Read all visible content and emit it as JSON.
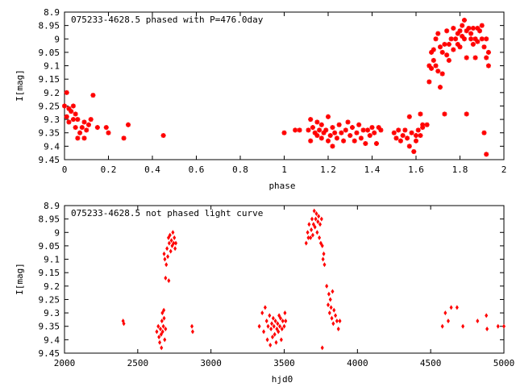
{
  "chart_data": [
    {
      "type": "scatter",
      "title": "075233-4628.5 phased with P=476.0day",
      "xlabel": "phase",
      "ylabel": "I[mag]",
      "xlim": [
        0,
        2
      ],
      "ylim": [
        9.45,
        8.9
      ],
      "y_inverted": true,
      "grid": false,
      "marker_color": "#ff0000",
      "marker": "star",
      "xticks": [
        "0",
        "0.2",
        "0.4",
        "0.6",
        "0.8",
        "1",
        "1.2",
        "1.4",
        "1.6",
        "1.8",
        "2"
      ],
      "yticks": [
        "8.9",
        "8.95",
        "9",
        "9.05",
        "9.1",
        "9.15",
        "9.2",
        "9.25",
        "9.3",
        "9.35",
        "9.4",
        "9.45"
      ],
      "points": [
        [
          0.0,
          9.25
        ],
        [
          0.01,
          9.29
        ],
        [
          0.01,
          9.2
        ],
        [
          0.02,
          9.26
        ],
        [
          0.02,
          9.31
        ],
        [
          0.03,
          9.27
        ],
        [
          0.04,
          9.25
        ],
        [
          0.04,
          9.3
        ],
        [
          0.05,
          9.33
        ],
        [
          0.05,
          9.28
        ],
        [
          0.06,
          9.37
        ],
        [
          0.06,
          9.3
        ],
        [
          0.07,
          9.35
        ],
        [
          0.08,
          9.33
        ],
        [
          0.09,
          9.37
        ],
        [
          0.09,
          9.31
        ],
        [
          0.1,
          9.34
        ],
        [
          0.11,
          9.32
        ],
        [
          0.12,
          9.3
        ],
        [
          0.13,
          9.21
        ],
        [
          0.15,
          9.33
        ],
        [
          0.19,
          9.33
        ],
        [
          0.2,
          9.35
        ],
        [
          0.27,
          9.37
        ],
        [
          0.29,
          9.32
        ],
        [
          0.45,
          9.36
        ],
        [
          1.0,
          9.35
        ],
        [
          1.05,
          9.34
        ],
        [
          1.07,
          9.34
        ],
        [
          1.11,
          9.34
        ],
        [
          1.12,
          9.3
        ],
        [
          1.12,
          9.38
        ],
        [
          1.13,
          9.33
        ],
        [
          1.14,
          9.35
        ],
        [
          1.15,
          9.36
        ],
        [
          1.15,
          9.31
        ],
        [
          1.16,
          9.34
        ],
        [
          1.17,
          9.37
        ],
        [
          1.17,
          9.32
        ],
        [
          1.18,
          9.35
        ],
        [
          1.19,
          9.34
        ],
        [
          1.2,
          9.38
        ],
        [
          1.2,
          9.29
        ],
        [
          1.21,
          9.36
        ],
        [
          1.22,
          9.33
        ],
        [
          1.22,
          9.4
        ],
        [
          1.23,
          9.35
        ],
        [
          1.24,
          9.37
        ],
        [
          1.25,
          9.32
        ],
        [
          1.26,
          9.35
        ],
        [
          1.27,
          9.38
        ],
        [
          1.28,
          9.34
        ],
        [
          1.29,
          9.31
        ],
        [
          1.3,
          9.36
        ],
        [
          1.31,
          9.33
        ],
        [
          1.32,
          9.38
        ],
        [
          1.33,
          9.35
        ],
        [
          1.34,
          9.32
        ],
        [
          1.35,
          9.37
        ],
        [
          1.36,
          9.34
        ],
        [
          1.37,
          9.39
        ],
        [
          1.38,
          9.34
        ],
        [
          1.39,
          9.36
        ],
        [
          1.4,
          9.33
        ],
        [
          1.41,
          9.35
        ],
        [
          1.42,
          9.39
        ],
        [
          1.43,
          9.33
        ],
        [
          1.44,
          9.34
        ],
        [
          1.5,
          9.35
        ],
        [
          1.51,
          9.37
        ],
        [
          1.52,
          9.34
        ],
        [
          1.53,
          9.38
        ],
        [
          1.54,
          9.36
        ],
        [
          1.55,
          9.34
        ],
        [
          1.56,
          9.37
        ],
        [
          1.57,
          9.4
        ],
        [
          1.57,
          9.29
        ],
        [
          1.58,
          9.35
        ],
        [
          1.59,
          9.42
        ],
        [
          1.6,
          9.36
        ],
        [
          1.6,
          9.38
        ],
        [
          1.61,
          9.34
        ],
        [
          1.62,
          9.36
        ],
        [
          1.62,
          9.28
        ],
        [
          1.63,
          9.32
        ],
        [
          1.63,
          9.33
        ],
        [
          1.65,
          9.32
        ],
        [
          1.66,
          9.16
        ],
        [
          1.66,
          9.1
        ],
        [
          1.67,
          9.05
        ],
        [
          1.67,
          9.11
        ],
        [
          1.68,
          9.04
        ],
        [
          1.68,
          9.08
        ],
        [
          1.69,
          9.1
        ],
        [
          1.69,
          9.0
        ],
        [
          1.7,
          9.12
        ],
        [
          1.7,
          8.98
        ],
        [
          1.71,
          9.03
        ],
        [
          1.71,
          9.18
        ],
        [
          1.72,
          9.05
        ],
        [
          1.72,
          9.13
        ],
        [
          1.73,
          9.02
        ],
        [
          1.73,
          9.28
        ],
        [
          1.74,
          9.06
        ],
        [
          1.74,
          8.97
        ],
        [
          1.75,
          9.02
        ],
        [
          1.75,
          9.08
        ],
        [
          1.76,
          9.0
        ],
        [
          1.77,
          9.04
        ],
        [
          1.77,
          8.96
        ],
        [
          1.78,
          9.0
        ],
        [
          1.79,
          9.02
        ],
        [
          1.79,
          8.98
        ],
        [
          1.8,
          8.97
        ],
        [
          1.8,
          9.03
        ],
        [
          1.81,
          8.95
        ],
        [
          1.81,
          8.99
        ],
        [
          1.82,
          9.0
        ],
        [
          1.82,
          8.93
        ],
        [
          1.83,
          8.97
        ],
        [
          1.83,
          9.07
        ],
        [
          1.83,
          9.28
        ],
        [
          1.84,
          8.96
        ],
        [
          1.85,
          9.0
        ],
        [
          1.85,
          8.98
        ],
        [
          1.86,
          8.96
        ],
        [
          1.86,
          9.02
        ],
        [
          1.87,
          9.0
        ],
        [
          1.87,
          9.07
        ],
        [
          1.88,
          8.96
        ],
        [
          1.88,
          9.01
        ],
        [
          1.89,
          8.97
        ],
        [
          1.9,
          9.0
        ],
        [
          1.9,
          8.95
        ],
        [
          1.91,
          9.03
        ],
        [
          1.91,
          9.35
        ],
        [
          1.92,
          9.0
        ],
        [
          1.92,
          9.07
        ],
        [
          1.92,
          9.43
        ],
        [
          1.93,
          9.1
        ],
        [
          1.93,
          9.05
        ]
      ]
    },
    {
      "type": "scatter",
      "title": "075233-4628.5 not phased light curve",
      "xlabel": "hjd0",
      "ylabel": "I[mag]",
      "xlim": [
        2000,
        5000
      ],
      "ylim": [
        9.45,
        8.9
      ],
      "y_inverted": true,
      "grid": false,
      "marker_color": "#ff0000",
      "marker": "dot",
      "xticks": [
        "2000",
        "2500",
        "3000",
        "3500",
        "4000",
        "4500",
        "5000"
      ],
      "yticks": [
        "8.9",
        "8.95",
        "9",
        "9.05",
        "9.1",
        "9.15",
        "9.2",
        "9.25",
        "9.3",
        "9.35",
        "9.4",
        "9.45"
      ],
      "points": [
        [
          2400,
          9.33
        ],
        [
          2405,
          9.34
        ],
        [
          2630,
          9.37
        ],
        [
          2640,
          9.35
        ],
        [
          2645,
          9.39
        ],
        [
          2650,
          9.41
        ],
        [
          2655,
          9.36
        ],
        [
          2660,
          9.38
        ],
        [
          2662,
          9.43
        ],
        [
          2665,
          9.33
        ],
        [
          2668,
          9.3
        ],
        [
          2670,
          9.37
        ],
        [
          2675,
          9.35
        ],
        [
          2678,
          9.29
        ],
        [
          2680,
          9.32
        ],
        [
          2684,
          9.4
        ],
        [
          2690,
          9.36
        ],
        [
          2680,
          9.08
        ],
        [
          2685,
          9.1
        ],
        [
          2690,
          9.17
        ],
        [
          2695,
          9.12
        ],
        [
          2700,
          9.06
        ],
        [
          2705,
          9.09
        ],
        [
          2710,
          9.02
        ],
        [
          2712,
          9.18
        ],
        [
          2715,
          9.04
        ],
        [
          2720,
          9.01
        ],
        [
          2725,
          9.07
        ],
        [
          2730,
          9.03
        ],
        [
          2735,
          9.05
        ],
        [
          2740,
          9.0
        ],
        [
          2745,
          9.04
        ],
        [
          2750,
          9.02
        ],
        [
          2755,
          9.06
        ],
        [
          2760,
          9.04
        ],
        [
          2870,
          9.35
        ],
        [
          2875,
          9.37
        ],
        [
          3330,
          9.35
        ],
        [
          3350,
          9.3
        ],
        [
          3360,
          9.37
        ],
        [
          3370,
          9.28
        ],
        [
          3380,
          9.33
        ],
        [
          3385,
          9.4
        ],
        [
          3390,
          9.35
        ],
        [
          3400,
          9.31
        ],
        [
          3405,
          9.42
        ],
        [
          3410,
          9.36
        ],
        [
          3415,
          9.34
        ],
        [
          3420,
          9.39
        ],
        [
          3425,
          9.32
        ],
        [
          3430,
          9.35
        ],
        [
          3435,
          9.38
        ],
        [
          3440,
          9.33
        ],
        [
          3445,
          9.41
        ],
        [
          3450,
          9.36
        ],
        [
          3455,
          9.34
        ],
        [
          3460,
          9.37
        ],
        [
          3465,
          9.31
        ],
        [
          3470,
          9.35
        ],
        [
          3475,
          9.32
        ],
        [
          3480,
          9.4
        ],
        [
          3485,
          9.36
        ],
        [
          3490,
          9.33
        ],
        [
          3500,
          9.35
        ],
        [
          3505,
          9.3
        ],
        [
          3510,
          9.33
        ],
        [
          3650,
          9.04
        ],
        [
          3660,
          9.0
        ],
        [
          3665,
          9.02
        ],
        [
          3670,
          8.97
        ],
        [
          3680,
          9.02
        ],
        [
          3685,
          8.99
        ],
        [
          3690,
          8.95
        ],
        [
          3695,
          9.01
        ],
        [
          3700,
          8.97
        ],
        [
          3705,
          8.92
        ],
        [
          3710,
          8.98
        ],
        [
          3715,
          8.95
        ],
        [
          3720,
          8.93
        ],
        [
          3725,
          9.0
        ],
        [
          3730,
          8.96
        ],
        [
          3735,
          8.94
        ],
        [
          3740,
          9.02
        ],
        [
          3745,
          8.97
        ],
        [
          3750,
          9.04
        ],
        [
          3755,
          8.95
        ],
        [
          3760,
          9.05
        ],
        [
          3765,
          9.1
        ],
        [
          3770,
          9.08
        ],
        [
          3775,
          9.12
        ],
        [
          3760,
          9.43
        ],
        [
          3790,
          9.2
        ],
        [
          3800,
          9.27
        ],
        [
          3805,
          9.23
        ],
        [
          3810,
          9.3
        ],
        [
          3815,
          9.25
        ],
        [
          3820,
          9.28
        ],
        [
          3825,
          9.32
        ],
        [
          3830,
          9.22
        ],
        [
          3835,
          9.34
        ],
        [
          3840,
          9.29
        ],
        [
          3850,
          9.31
        ],
        [
          3860,
          9.33
        ],
        [
          3870,
          9.36
        ],
        [
          3880,
          9.33
        ],
        [
          4580,
          9.35
        ],
        [
          4600,
          9.3
        ],
        [
          4620,
          9.33
        ],
        [
          4640,
          9.28
        ],
        [
          4680,
          9.28
        ],
        [
          4720,
          9.35
        ],
        [
          4820,
          9.33
        ],
        [
          4880,
          9.31
        ],
        [
          4885,
          9.36
        ],
        [
          4960,
          9.35
        ],
        [
          5000,
          9.35
        ]
      ]
    }
  ]
}
